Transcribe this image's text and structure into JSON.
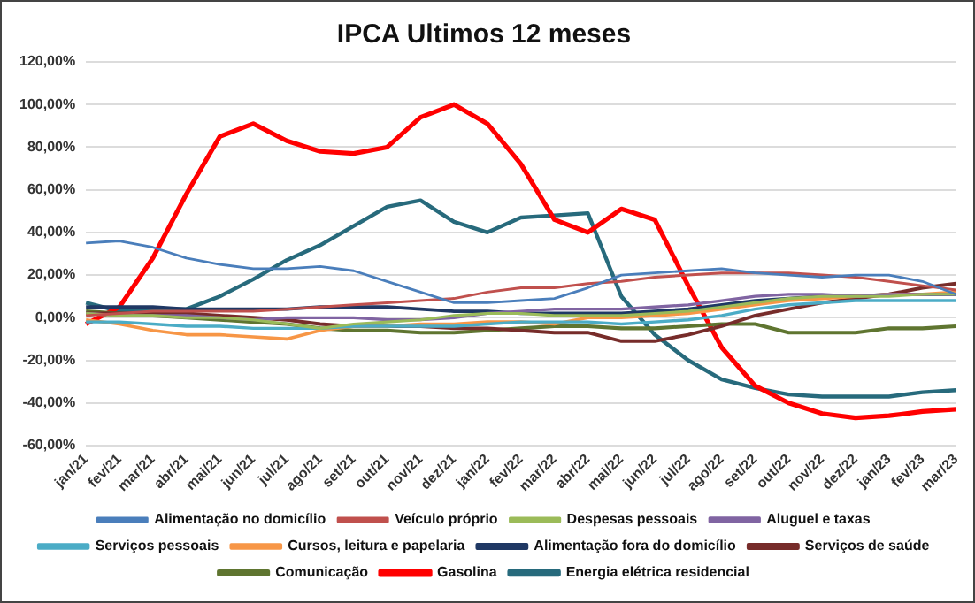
{
  "chart_data": {
    "type": "line",
    "title": "IPCA Ultimos 12 meses",
    "categories": [
      "jan/21",
      "fev/21",
      "mar/21",
      "abr/21",
      "mai/21",
      "jun/21",
      "jul/21",
      "ago/21",
      "set/21",
      "out/21",
      "nov/21",
      "dez/21",
      "jan/22",
      "fev/22",
      "mar/22",
      "abr/22",
      "mai/22",
      "jun/22",
      "jul/22",
      "ago/22",
      "set/22",
      "out/22",
      "nov/22",
      "dez/22",
      "jan/23",
      "fev/23",
      "mar/23"
    ],
    "ylim": [
      -60,
      120
    ],
    "yticks": [
      {
        "value": -60,
        "label": "-60,00%"
      },
      {
        "value": -40,
        "label": "-40,00%"
      },
      {
        "value": -20,
        "label": "-20,00%"
      },
      {
        "value": 0,
        "label": "0,00%"
      },
      {
        "value": 20,
        "label": "20,00%"
      },
      {
        "value": 40,
        "label": "40,00%"
      },
      {
        "value": 60,
        "label": "60,00%"
      },
      {
        "value": 80,
        "label": "80,00%"
      },
      {
        "value": 100,
        "label": "100,00%"
      },
      {
        "value": 120,
        "label": "120,00%"
      }
    ],
    "grid": "y",
    "legend": "bottom",
    "marker": "none",
    "line_style": "solid",
    "series": [
      {
        "name": "Alimentação no domicílio",
        "color": "#4a7ebb",
        "values": [
          35,
          36,
          33,
          28,
          25,
          23,
          23,
          24,
          22,
          17,
          12,
          7,
          7,
          8,
          9,
          14,
          20,
          21,
          22,
          23,
          21,
          20,
          19,
          20,
          20,
          17,
          11
        ]
      },
      {
        "name": "Veículo próprio",
        "color": "#c0504d",
        "values": [
          1,
          2,
          3,
          3,
          3,
          3,
          4,
          5,
          6,
          7,
          8,
          9,
          12,
          14,
          14,
          16,
          17,
          19,
          20,
          21,
          21,
          21,
          20,
          19,
          17,
          15,
          13
        ]
      },
      {
        "name": "Despesas pessoais",
        "color": "#9bbb59",
        "values": [
          2,
          1,
          1,
          0,
          0,
          -1,
          -3,
          -5,
          -3,
          -2,
          -1,
          1,
          2,
          2,
          1,
          1,
          1,
          2,
          3,
          5,
          7,
          9,
          10,
          10,
          10,
          11,
          11
        ]
      },
      {
        "name": "Aluguel e taxas",
        "color": "#8064a2",
        "values": [
          2,
          1,
          1,
          1,
          0,
          -1,
          0,
          0,
          0,
          -1,
          -1,
          0,
          2,
          3,
          4,
          4,
          4,
          5,
          6,
          8,
          10,
          11,
          11,
          10,
          11,
          11,
          11
        ]
      },
      {
        "name": "Serviços pessoais",
        "color": "#4bacc6",
        "values": [
          -2,
          -2,
          -3,
          -4,
          -4,
          -5,
          -5,
          -5,
          -4,
          -4,
          -4,
          -4,
          -3,
          -2,
          -2,
          -2,
          -3,
          -2,
          -1,
          1,
          4,
          6,
          7,
          8,
          8,
          8,
          8
        ]
      },
      {
        "name": "Cursos, leitura e papelaria",
        "color": "#f79646",
        "values": [
          -1,
          -3,
          -6,
          -8,
          -8,
          -9,
          -10,
          -6,
          -4,
          -4,
          -3,
          -3,
          -2,
          -2,
          -3,
          0,
          0,
          1,
          2,
          4,
          6,
          8,
          9,
          10,
          11,
          11,
          12
        ]
      },
      {
        "name": "Alimentação fora do domicílio",
        "color": "#1f3864",
        "values": [
          5,
          5,
          5,
          4,
          4,
          4,
          4,
          5,
          5,
          5,
          4,
          3,
          3,
          2,
          2,
          2,
          2,
          3,
          4,
          6,
          8,
          9,
          10,
          10,
          11,
          11,
          11
        ]
      },
      {
        "name": "Serviços de saúde",
        "color": "#772c2a",
        "values": [
          2,
          2,
          2,
          2,
          1,
          0,
          -1,
          -3,
          -4,
          -4,
          -4,
          -5,
          -5,
          -6,
          -7,
          -7,
          -11,
          -11,
          -8,
          -4,
          1,
          4,
          7,
          9,
          11,
          14,
          16
        ]
      },
      {
        "name": "Comunicação",
        "color": "#5f7530",
        "values": [
          3,
          2,
          1,
          0,
          -1,
          -2,
          -3,
          -5,
          -6,
          -6,
          -7,
          -7,
          -6,
          -5,
          -4,
          -4,
          -5,
          -5,
          -4,
          -3,
          -3,
          -7,
          -7,
          -7,
          -5,
          -5,
          -4
        ]
      },
      {
        "name": "Gasolina",
        "color": "#ff0000",
        "values": [
          -3,
          5,
          28,
          58,
          85,
          91,
          83,
          78,
          77,
          80,
          94,
          100,
          91,
          72,
          46,
          40,
          51,
          46,
          15,
          -14,
          -32,
          -40,
          -45,
          -47,
          -46,
          -44,
          -43
        ]
      },
      {
        "name": "Energia elétrica residencial",
        "color": "#276a7c",
        "values": [
          7,
          3,
          4,
          4,
          10,
          18,
          27,
          34,
          43,
          52,
          55,
          45,
          40,
          47,
          48,
          49,
          10,
          -8,
          -20,
          -29,
          -33,
          -36,
          -37,
          -37,
          -37,
          -35,
          -34
        ]
      }
    ]
  }
}
